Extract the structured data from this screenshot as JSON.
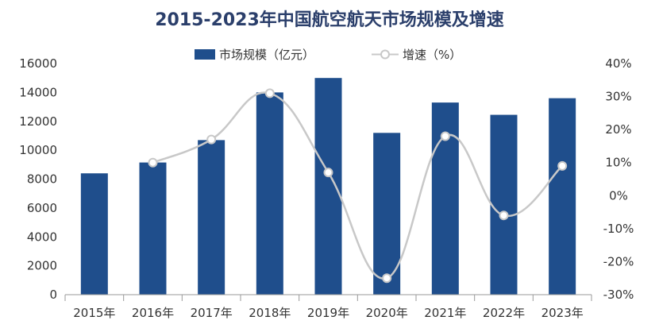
{
  "chart_data": {
    "type": "bar+line",
    "title": "2015-2023年中国航空航天市场规模及增速",
    "categories": [
      "2015年",
      "2016年",
      "2017年",
      "2018年",
      "2019年",
      "2020年",
      "2021年",
      "2022年",
      "2023年"
    ],
    "series": [
      {
        "name": "市场规模（亿元）",
        "type": "bar",
        "axis": "left",
        "values": [
          8400,
          9150,
          10700,
          14000,
          15000,
          11200,
          13300,
          12450,
          13600
        ]
      },
      {
        "name": "增速（%）",
        "type": "line",
        "axis": "right",
        "values": [
          null,
          10,
          17,
          31,
          7,
          -25,
          18,
          -6,
          9
        ]
      }
    ],
    "y_left": {
      "min": 0,
      "max": 16000,
      "ticks": [
        "0",
        "2000",
        "4000",
        "6000",
        "8000",
        "10000",
        "12000",
        "14000",
        "16000"
      ]
    },
    "y_right": {
      "min": -30,
      "max": 40,
      "ticks": [
        "-30%",
        "-20%",
        "-10%",
        "0%",
        "10%",
        "20%",
        "30%",
        "40%"
      ]
    },
    "legend_position": "top-center",
    "grid": false,
    "colors": {
      "bar": "#1f4e8c",
      "line": "#c8c8c8",
      "marker_fill": "#ffffff",
      "title": "#2b3f6b"
    }
  }
}
